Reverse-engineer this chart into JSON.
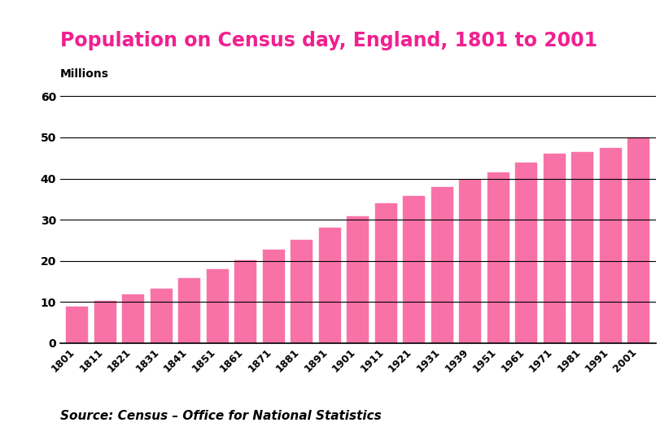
{
  "title": "Population on Census day, England, 1801 to 2001",
  "ylabel": "Millions",
  "source": "Source: Census – Office for National Statistics",
  "categories": [
    "1801",
    "1811",
    "1821",
    "1831",
    "1841",
    "1851",
    "1861",
    "1871",
    "1881",
    "1891",
    "1901",
    "1911",
    "1921",
    "1931",
    "1939",
    "1951",
    "1961",
    "1971",
    "1981",
    "1991",
    "2001"
  ],
  "values": [
    8.9,
    10.2,
    11.9,
    13.3,
    15.9,
    17.9,
    20.1,
    22.7,
    25.0,
    28.0,
    30.8,
    34.0,
    35.8,
    37.9,
    39.8,
    41.5,
    43.8,
    46.1,
    46.4,
    47.5,
    49.9
  ],
  "bar_color": "#F872A8",
  "bar_edge_color": "#F872A8",
  "title_color": "#F02090",
  "background_color": "#ffffff",
  "ylim": [
    0,
    62
  ],
  "yticks": [
    0,
    10,
    20,
    30,
    40,
    50,
    60
  ],
  "grid_color": "#000000",
  "title_fontsize": 17,
  "ylabel_fontsize": 10,
  "xtick_fontsize": 9,
  "ytick_fontsize": 10,
  "source_fontsize": 11
}
